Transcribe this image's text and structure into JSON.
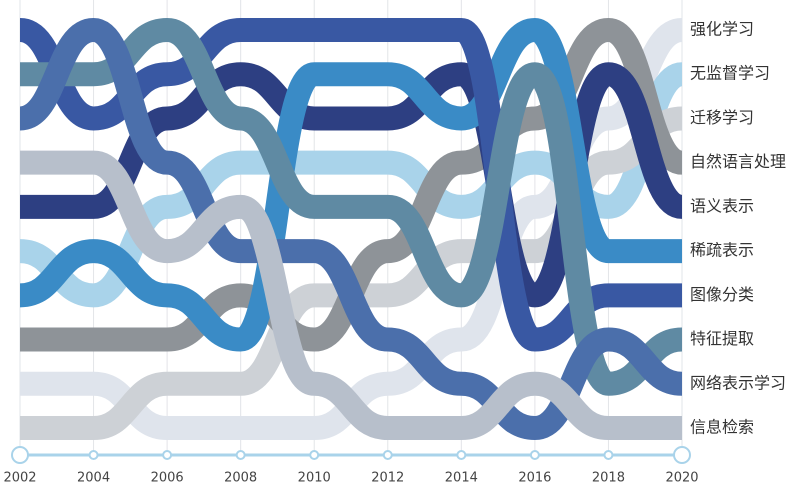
{
  "chart_data": {
    "type": "bump",
    "x": [
      2002,
      2004,
      2006,
      2008,
      2010,
      2012,
      2014,
      2016,
      2018,
      2020
    ],
    "series": [
      {
        "name": "强化学习",
        "color": "#dfe4ec",
        "values": [
          9,
          9,
          10,
          10,
          10,
          9,
          8,
          5,
          3,
          1
        ]
      },
      {
        "name": "无监督学习",
        "color": "#a9d3ea",
        "values": [
          6,
          7,
          5,
          4,
          4,
          4,
          5,
          4,
          5,
          2
        ]
      },
      {
        "name": "迁移学习",
        "color": "#cdd1d6",
        "values": [
          10,
          10,
          9,
          9,
          7,
          7,
          6,
          6,
          4,
          3
        ]
      },
      {
        "name": "自然语言处理",
        "color": "#8e9398",
        "values": [
          8,
          8,
          8,
          7,
          8,
          6,
          4,
          3,
          1,
          4
        ]
      },
      {
        "name": "语义表示",
        "color": "#2d3f82",
        "values": [
          5,
          5,
          3,
          2,
          3,
          3,
          2,
          7,
          2,
          5
        ]
      },
      {
        "name": "稀疏表示",
        "color": "#3a8bc6",
        "values": [
          7,
          6,
          7,
          8,
          2,
          2,
          3,
          1,
          6,
          6
        ]
      },
      {
        "name": "图像分类",
        "color": "#3958a3",
        "values": [
          1,
          3,
          2,
          1,
          1,
          1,
          1,
          8,
          7,
          7
        ]
      },
      {
        "name": "特征提取",
        "color": "#5f8aa3",
        "values": [
          2,
          2,
          1,
          3,
          5,
          5,
          7,
          2,
          9,
          8
        ]
      },
      {
        "name": "网络表示学习",
        "color": "#4b6fab",
        "values": [
          3,
          1,
          4,
          6,
          6,
          8,
          9,
          10,
          8,
          9
        ]
      },
      {
        "name": "信息检索",
        "color": "#b7bfcb",
        "values": [
          4,
          4,
          6,
          5,
          9,
          10,
          10,
          9,
          10,
          10
        ]
      }
    ],
    "grid": true
  }
}
